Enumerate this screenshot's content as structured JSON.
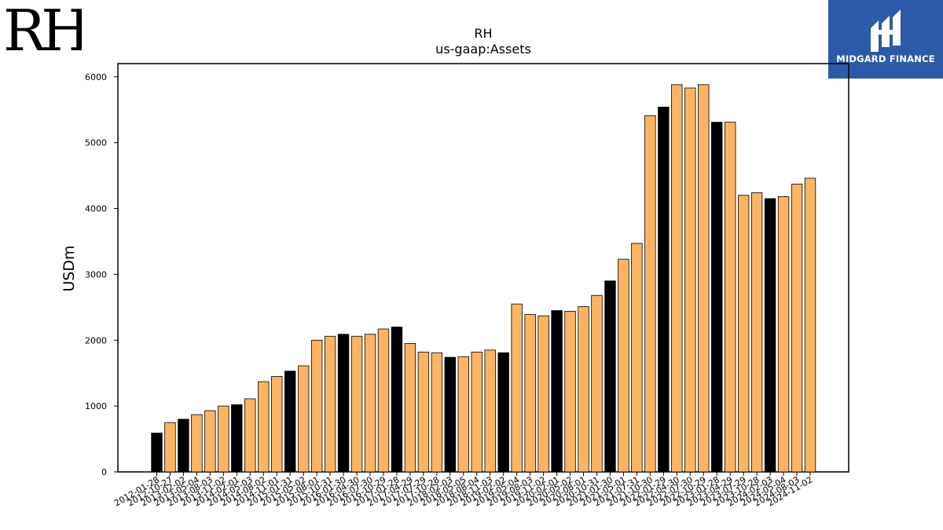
{
  "brand": {
    "left_logo_text": "RH",
    "right_logo_text": "MIDGARD FINANCE"
  },
  "colors": {
    "highlight": "#000000",
    "default": "#fdb462",
    "edge": "#000000"
  },
  "chart_data": {
    "type": "bar",
    "title": "RH",
    "subtitle": "us-gaap:Assets",
    "xlabel": "",
    "ylabel": "USDm",
    "ylim": [
      0,
      6200
    ],
    "yticks": [
      0,
      1000,
      2000,
      3000,
      4000,
      5000,
      6000
    ],
    "grid": false,
    "categories": [
      "2012-01-28",
      "2012-10-27",
      "2013-02-02",
      "2013-05-04",
      "2013-08-03",
      "2013-11-02",
      "2014-02-01",
      "2014-05-03",
      "2014-08-02",
      "2014-11-01",
      "2015-01-31",
      "2015-05-02",
      "2015-08-01",
      "2015-10-31",
      "2016-01-30",
      "2016-04-30",
      "2016-07-30",
      "2016-10-29",
      "2017-01-28",
      "2017-04-29",
      "2017-07-29",
      "2017-10-28",
      "2018-02-03",
      "2018-05-05",
      "2018-08-04",
      "2018-11-03",
      "2019-02-02",
      "2019-05-04",
      "2019-08-03",
      "2019-11-02",
      "2020-02-01",
      "2020-05-02",
      "2020-08-01",
      "2020-10-31",
      "2021-01-30",
      "2021-05-01",
      "2021-07-31",
      "2021-10-30",
      "2022-01-29",
      "2022-04-30",
      "2022-07-30",
      "2022-10-29",
      "2023-01-28",
      "2023-04-29",
      "2023-07-29",
      "2023-10-28",
      "2024-02-03",
      "2024-05-04",
      "2024-08-03",
      "2024-11-02"
    ],
    "values": [
      590,
      750,
      800,
      870,
      930,
      1000,
      1020,
      1110,
      1370,
      1450,
      1530,
      1610,
      2000,
      2060,
      2090,
      2060,
      2090,
      2170,
      2200,
      1950,
      1820,
      1810,
      1740,
      1750,
      1820,
      1850,
      1810,
      2550,
      2390,
      2370,
      2450,
      2440,
      2510,
      2680,
      2900,
      3230,
      3470,
      5410,
      5540,
      5880,
      5830,
      5880,
      5310,
      5310,
      4200,
      4240,
      4150,
      4180,
      4370,
      4460
    ],
    "highlight_index": [
      0,
      2,
      6,
      10,
      14,
      18,
      22,
      26,
      30,
      34,
      38,
      42,
      46
    ]
  }
}
